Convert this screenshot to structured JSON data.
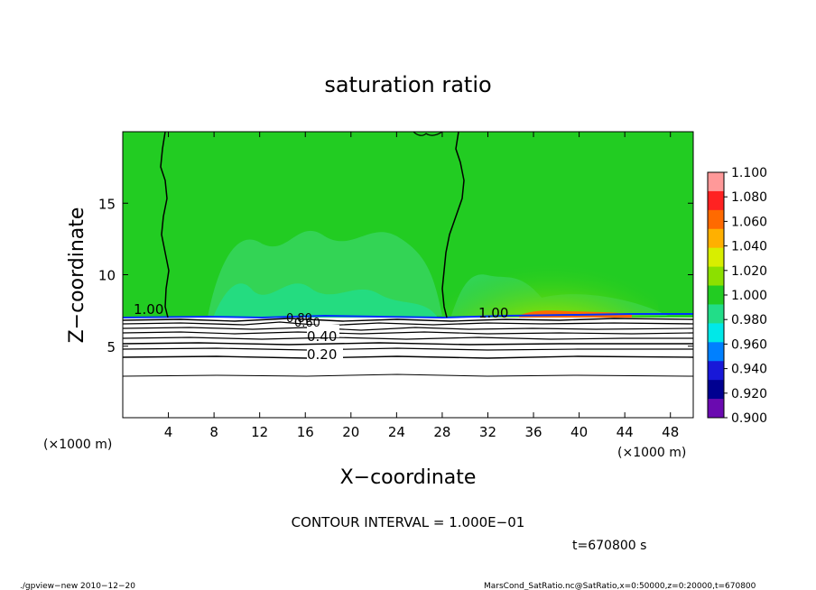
{
  "chart_data": {
    "type": "heatmap",
    "title": "saturation ratio",
    "xlabel": "X−coordinate",
    "ylabel": "Z−coordinate",
    "x_unit_label": "(×1000 m)",
    "y_unit_label": "(×1000 m)",
    "x_ticks": [
      4,
      8,
      12,
      16,
      20,
      24,
      28,
      32,
      36,
      40,
      44,
      48
    ],
    "y_ticks": [
      5,
      10,
      15
    ],
    "xlim": [
      0,
      50
    ],
    "ylim": [
      0,
      20
    ],
    "colorbar": {
      "levels": [
        "1.100",
        "1.080",
        "1.060",
        "1.040",
        "1.020",
        "1.000",
        "0.980",
        "0.960",
        "0.940",
        "0.920",
        "0.900"
      ],
      "colors": [
        "#ff9999",
        "#ff2222",
        "#ff6a00",
        "#ffb000",
        "#d8ee00",
        "#8ce000",
        "#22cc22",
        "#22dd88",
        "#00e8e8",
        "#0080ff",
        "#1818d8",
        "#000090",
        "#6a0ab0"
      ]
    },
    "contour_labels": [
      {
        "text": "1.00",
        "x": 2.5,
        "z": 7.6
      },
      {
        "text": "0.80",
        "x": 15.8,
        "z": 6.8
      },
      {
        "text": "0.60",
        "x": 16.2,
        "z": 6.4
      },
      {
        "text": "0.40",
        "x": 17.0,
        "z": 5.6
      },
      {
        "text": "0.20",
        "x": 17.0,
        "z": 4.3
      },
      {
        "text": "1.00",
        "x": 32.5,
        "z": 7.0
      }
    ],
    "contour_interval_text": "CONTOUR INTERVAL = 1.000E−01",
    "time_text": "t=670800  s"
  },
  "footer": {
    "left": "./gpview−new   2010−12−20",
    "right": "MarsCond_SatRatio.nc@SatRatio,x=0:50000,z=0:20000,t=670800"
  },
  "colors": {
    "field_green": "#22cc22",
    "field_teal": "#22dd88",
    "stable_layer": "#ffffff",
    "axis": "#000000"
  }
}
